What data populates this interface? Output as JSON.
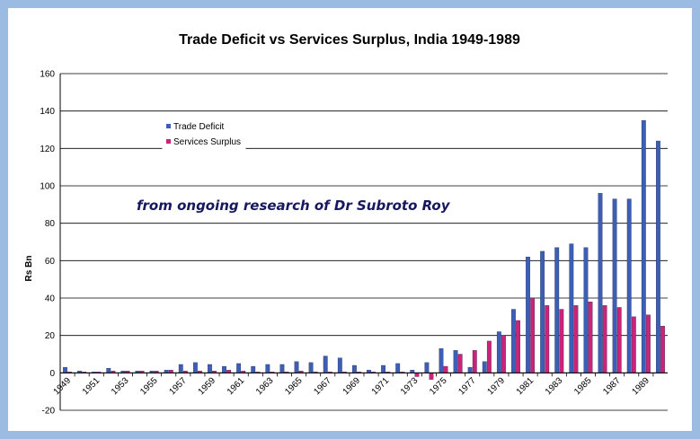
{
  "chart_data": {
    "type": "bar",
    "title": "Trade Deficit vs Services Surplus, India 1949-1989",
    "xlabel": "",
    "ylabel": "Rs Bn",
    "ylim": [
      -20,
      160
    ],
    "yticks": [
      -20,
      0,
      20,
      40,
      60,
      80,
      100,
      120,
      140,
      160
    ],
    "grid": true,
    "legend_position": "upper-left",
    "annotation": "from ongoing research of Dr Subroto Roy",
    "categories": [
      "1949",
      "1950",
      "1951",
      "1952",
      "1953",
      "1954",
      "1955",
      "1956",
      "1957",
      "1958",
      "1959",
      "1960",
      "1961",
      "1962",
      "1963",
      "1964",
      "1965",
      "1966",
      "1967",
      "1968",
      "1969",
      "1970",
      "1971",
      "1972",
      "1973",
      "1974",
      "1975",
      "1976",
      "1977",
      "1978",
      "1979",
      "1980",
      "1981",
      "1982",
      "1983",
      "1984",
      "1985",
      "1986",
      "1987",
      "1988",
      "1989",
      "1990"
    ],
    "x_tick_labels": [
      "1949",
      "1951",
      "1953",
      "1955",
      "1957",
      "1959",
      "1961",
      "1963",
      "1965",
      "1967",
      "1969",
      "1971",
      "1973",
      "1975",
      "1977",
      "1979",
      "1981",
      "1983",
      "1985",
      "1987",
      "1989"
    ],
    "series": [
      {
        "name": "Trade Deficit",
        "color": "#3c5fb5",
        "values": [
          3,
          1,
          0.5,
          2.5,
          1,
          1,
          1,
          1.5,
          4.5,
          5.5,
          4.5,
          3.5,
          5,
          3.5,
          4.5,
          4.5,
          6,
          5.5,
          9,
          8,
          4,
          1.5,
          4,
          5,
          1.5,
          5.5,
          13,
          12,
          3,
          6,
          22,
          34,
          62,
          65,
          67,
          69,
          67,
          96,
          93,
          93,
          135,
          124
        ]
      },
      {
        "name": "Services Surplus",
        "color": "#cc2277",
        "values": [
          0.5,
          0.5,
          0.5,
          1,
          1,
          1,
          1,
          1.5,
          1,
          1,
          1,
          1.5,
          1,
          0.5,
          0.5,
          0.5,
          1,
          0.5,
          0.5,
          0.5,
          0.5,
          0.5,
          0.5,
          0.5,
          -2,
          -3.5,
          3.5,
          10,
          12,
          17,
          20,
          28,
          40,
          36,
          34,
          36,
          38,
          36,
          35,
          30,
          31,
          25
        ]
      }
    ]
  }
}
